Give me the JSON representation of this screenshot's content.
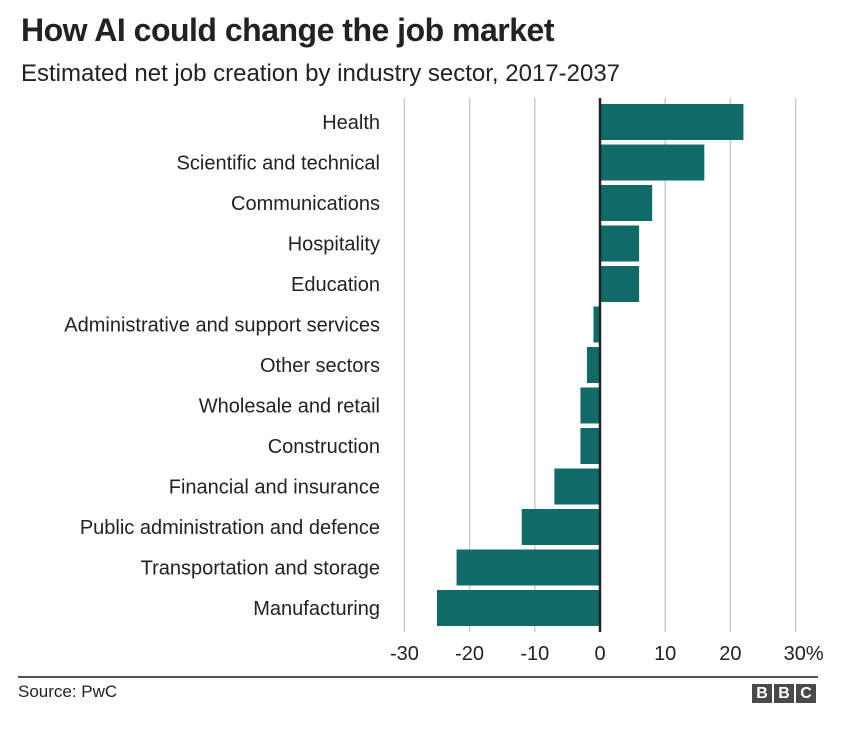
{
  "header": {
    "title": "How AI could change the job market",
    "subtitle": "Estimated net job creation by industry sector, 2017-2037"
  },
  "footer": {
    "source": "Source: PwC",
    "logo_letters": [
      "B",
      "B",
      "C"
    ]
  },
  "colors": {
    "bar": "#106b68",
    "zero_line": "#222222",
    "gridline": "#cccccc",
    "text": "#222222"
  },
  "chart_data": {
    "type": "bar",
    "orientation": "horizontal",
    "title": "How AI could change the job market",
    "subtitle": "Estimated net job creation by industry sector, 2017-2037",
    "xlabel": "",
    "ylabel": "",
    "unit": "%",
    "xlim": [
      -30,
      30
    ],
    "xticks": [
      -30,
      -20,
      -10,
      0,
      10,
      20,
      30
    ],
    "xtick_labels": [
      "-30",
      "-20",
      "-10",
      "0",
      "10",
      "20",
      "30%"
    ],
    "grid": "vertical",
    "legend": "none",
    "categories": [
      "Health",
      "Scientific and technical",
      "Communications",
      "Hospitality",
      "Education",
      "Administrative and support services",
      "Other sectors",
      "Wholesale and retail",
      "Construction",
      "Financial and insurance",
      "Public administration and defence",
      "Transportation and storage",
      "Manufacturing"
    ],
    "values": [
      22,
      16,
      8,
      6,
      6,
      -1,
      -2,
      -3,
      -3,
      -7,
      -12,
      -22,
      -25
    ],
    "source": "Source: PwC"
  }
}
